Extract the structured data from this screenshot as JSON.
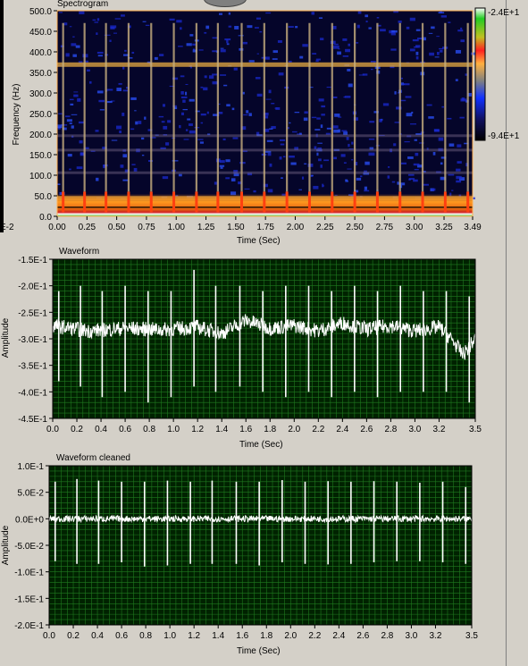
{
  "colorbar": {
    "max_label": "-2.4E+1",
    "min_label": "-9.4E+1",
    "stray_left_label": "E-2"
  },
  "colors": {
    "plot_bg": "#002200",
    "grid": "#1f7a1f",
    "trace": "#ffffff",
    "frame": "#000000"
  },
  "chart_data": [
    {
      "type": "heatmap",
      "title": "Spectrogram",
      "xlabel": "Time (Sec)",
      "ylabel": "Frequency (Hz)",
      "xlim": [
        0.0,
        3.49
      ],
      "ylim": [
        0.0,
        500.0
      ],
      "x_ticks": [
        "0.00",
        "0.25",
        "0.50",
        "0.75",
        "1.00",
        "1.25",
        "1.50",
        "1.75",
        "2.00",
        "2.25",
        "2.50",
        "2.75",
        "3.00",
        "3.25",
        "3.49"
      ],
      "y_ticks": [
        "0.0",
        "50.0",
        "100.0",
        "150.0",
        "200.0",
        "250.0",
        "300.0",
        "350.0",
        "400.0",
        "450.0",
        "500.0"
      ],
      "colorbar_range": [
        -94,
        -24
      ],
      "harmonic_bands_hz": [
        20,
        45,
        105,
        160,
        195,
        370
      ],
      "pulse_times_sec": [
        0.05,
        0.23,
        0.41,
        0.6,
        0.79,
        0.98,
        1.17,
        1.35,
        1.55,
        1.74,
        1.93,
        2.12,
        2.31,
        2.5,
        2.69,
        2.88,
        3.07,
        3.26,
        3.45
      ]
    },
    {
      "type": "line",
      "title": "Waveform",
      "xlabel": "Time (Sec)",
      "ylabel": "Amplitude",
      "xlim": [
        0.0,
        3.5
      ],
      "ylim": [
        -0.45,
        -0.15
      ],
      "x_ticks": [
        "0.0",
        "0.2",
        "0.4",
        "0.6",
        "0.8",
        "1.0",
        "1.2",
        "1.4",
        "1.6",
        "1.8",
        "2.0",
        "2.2",
        "2.4",
        "2.6",
        "2.8",
        "3.0",
        "3.2",
        "3.5"
      ],
      "y_ticks": [
        "-1.5E-1",
        "-2.0E-1",
        "-2.5E-1",
        "-3.0E-1",
        "-3.5E-1",
        "-4.0E-1",
        "-4.5E-1"
      ],
      "baseline_profile": {
        "x": [
          0.0,
          0.3,
          0.6,
          0.9,
          1.2,
          1.4,
          1.6,
          1.8,
          2.0,
          2.2,
          2.4,
          2.6,
          2.8,
          3.0,
          3.2,
          3.3,
          3.4,
          3.5
        ],
        "y": [
          -0.275,
          -0.285,
          -0.28,
          -0.283,
          -0.278,
          -0.29,
          -0.265,
          -0.28,
          -0.275,
          -0.285,
          -0.27,
          -0.282,
          -0.275,
          -0.285,
          -0.278,
          -0.3,
          -0.33,
          -0.3
        ]
      },
      "spikes": {
        "x": [
          0.05,
          0.23,
          0.41,
          0.6,
          0.79,
          0.98,
          1.17,
          1.35,
          1.55,
          1.74,
          1.93,
          2.12,
          2.31,
          2.5,
          2.69,
          2.88,
          3.07,
          3.26,
          3.45
        ],
        "peak": [
          -0.21,
          -0.2,
          -0.21,
          -0.2,
          -0.21,
          -0.21,
          -0.17,
          -0.2,
          -0.2,
          -0.21,
          -0.2,
          -0.2,
          -0.21,
          -0.2,
          -0.21,
          -0.2,
          -0.21,
          -0.21,
          -0.22
        ],
        "trough": [
          -0.38,
          -0.39,
          -0.41,
          -0.4,
          -0.42,
          -0.41,
          -0.39,
          -0.4,
          -0.39,
          -0.4,
          -0.41,
          -0.4,
          -0.41,
          -0.4,
          -0.41,
          -0.4,
          -0.4,
          -0.4,
          -0.42
        ]
      }
    },
    {
      "type": "line",
      "title": "Waveform cleaned",
      "xlabel": "Time (Sec)",
      "ylabel": "Amplitude",
      "xlim": [
        0.0,
        3.5
      ],
      "ylim": [
        -0.2,
        0.1
      ],
      "x_ticks": [
        "0.0",
        "0.2",
        "0.4",
        "0.6",
        "0.8",
        "1.0",
        "1.2",
        "1.4",
        "1.6",
        "1.8",
        "2.0",
        "2.2",
        "2.4",
        "2.6",
        "2.8",
        "3.0",
        "3.2",
        "3.5"
      ],
      "y_ticks": [
        "1.0E-1",
        "5.0E-2",
        "0.0E+0",
        "-5.0E-2",
        "-1.0E-1",
        "-1.5E-1",
        "-2.0E-1"
      ],
      "baseline_profile": {
        "x": [
          0.0,
          3.5
        ],
        "y": [
          0.0,
          0.0
        ]
      },
      "spikes": {
        "x": [
          0.05,
          0.23,
          0.41,
          0.6,
          0.79,
          0.98,
          1.17,
          1.35,
          1.55,
          1.74,
          1.93,
          2.12,
          2.31,
          2.5,
          2.69,
          2.88,
          3.07,
          3.26,
          3.45
        ],
        "peak": [
          0.07,
          0.075,
          0.072,
          0.07,
          0.07,
          0.072,
          0.07,
          0.072,
          0.07,
          0.07,
          0.073,
          0.07,
          0.071,
          0.07,
          0.071,
          0.07,
          0.068,
          0.07,
          0.06
        ],
        "trough": [
          -0.08,
          -0.085,
          -0.085,
          -0.082,
          -0.09,
          -0.088,
          -0.085,
          -0.085,
          -0.085,
          -0.088,
          -0.082,
          -0.085,
          -0.086,
          -0.085,
          -0.082,
          -0.08,
          -0.08,
          -0.082,
          -0.085
        ]
      }
    }
  ]
}
